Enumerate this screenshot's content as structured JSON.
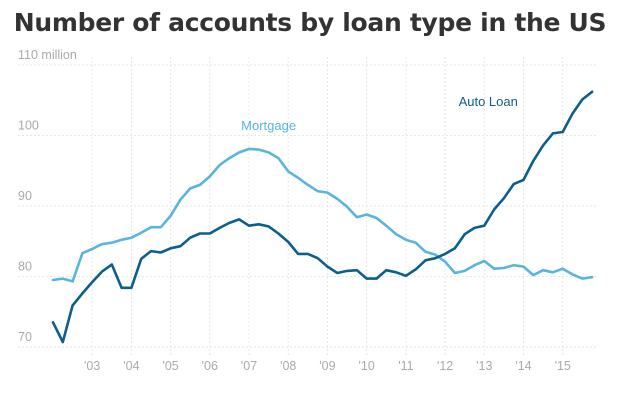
{
  "title": "Number of accounts by loan type in the US",
  "colors": {
    "mortgage": "#5ab4dc",
    "auto": "#0d5e8a",
    "grid": "#e6e6e6",
    "tick": "#aaaaaa"
  },
  "chart_data": {
    "type": "line",
    "title": "Number of accounts by loan type in the US",
    "xlabel": "",
    "ylabel": "",
    "xlim": [
      2002.0,
      2015.9
    ],
    "ylim": [
      70,
      110
    ],
    "y_ticks": [
      70,
      80,
      90,
      100,
      110
    ],
    "y_tick_labels": [
      "70",
      "80",
      "90",
      "100",
      "110 million"
    ],
    "x_ticks": [
      2003,
      2004,
      2005,
      2006,
      2007,
      2008,
      2009,
      2010,
      2011,
      2012,
      2013,
      2014,
      2015
    ],
    "x_tick_labels": [
      "'03",
      "'04",
      "'05",
      "'06",
      "'07",
      "'08",
      "'09",
      "'10",
      "'11",
      "'12",
      "'13",
      "'14",
      "'15"
    ],
    "grid": true,
    "series": [
      {
        "name": "Mortgage",
        "key": "mortgage",
        "x": [
          2002.0,
          2002.25,
          2002.5,
          2002.75,
          2003.0,
          2003.25,
          2003.5,
          2003.75,
          2004.0,
          2004.25,
          2004.5,
          2004.75,
          2005.0,
          2005.25,
          2005.5,
          2005.75,
          2006.0,
          2006.25,
          2006.5,
          2006.75,
          2007.0,
          2007.25,
          2007.5,
          2007.75,
          2008.0,
          2008.25,
          2008.5,
          2008.75,
          2009.0,
          2009.25,
          2009.5,
          2009.75,
          2010.0,
          2010.25,
          2010.5,
          2010.75,
          2011.0,
          2011.25,
          2011.5,
          2011.75,
          2012.0,
          2012.25,
          2012.5,
          2012.75,
          2013.0,
          2013.25,
          2013.5,
          2013.75,
          2014.0,
          2014.25,
          2014.5,
          2014.75,
          2015.0,
          2015.25,
          2015.5,
          2015.75
        ],
        "y": [
          79.5,
          79.7,
          79.3,
          83.3,
          83.9,
          84.6,
          84.8,
          85.2,
          85.5,
          86.2,
          87.0,
          87.0,
          88.6,
          90.9,
          92.5,
          93.0,
          94.2,
          95.8,
          96.8,
          97.6,
          98.1,
          98.0,
          97.6,
          96.8,
          94.9,
          94.0,
          93.0,
          92.1,
          91.9,
          91.0,
          89.9,
          88.4,
          88.8,
          88.3,
          87.2,
          86.0,
          85.2,
          84.8,
          83.5,
          83.1,
          82.1,
          80.5,
          80.8,
          81.6,
          82.2,
          81.1,
          81.2,
          81.6,
          81.4,
          80.2,
          80.9,
          80.6,
          81.1,
          80.3,
          79.7,
          79.9
        ]
      },
      {
        "name": "Auto Loan",
        "key": "auto",
        "x": [
          2002.0,
          2002.25,
          2002.5,
          2002.75,
          2003.0,
          2003.25,
          2003.5,
          2003.75,
          2004.0,
          2004.25,
          2004.5,
          2004.75,
          2005.0,
          2005.25,
          2005.5,
          2005.75,
          2006.0,
          2006.25,
          2006.5,
          2006.75,
          2007.0,
          2007.25,
          2007.5,
          2007.75,
          2008.0,
          2008.25,
          2008.5,
          2008.75,
          2009.0,
          2009.25,
          2009.5,
          2009.75,
          2010.0,
          2010.25,
          2010.5,
          2010.75,
          2011.0,
          2011.25,
          2011.5,
          2011.75,
          2012.0,
          2012.25,
          2012.5,
          2012.75,
          2013.0,
          2013.25,
          2013.5,
          2013.75,
          2014.0,
          2014.25,
          2014.5,
          2014.75,
          2015.0,
          2015.25,
          2015.5,
          2015.75
        ],
        "y": [
          73.5,
          70.7,
          75.9,
          77.6,
          79.2,
          80.7,
          81.7,
          78.4,
          78.4,
          82.5,
          83.6,
          83.4,
          84.0,
          84.3,
          85.5,
          86.1,
          86.1,
          86.9,
          87.6,
          88.1,
          87.2,
          87.4,
          87.1,
          86.1,
          84.9,
          83.2,
          83.2,
          82.6,
          81.4,
          80.5,
          80.8,
          80.9,
          79.7,
          79.7,
          80.9,
          80.6,
          80.1,
          81.0,
          82.3,
          82.6,
          83.2,
          84.0,
          86.0,
          86.9,
          87.2,
          89.5,
          91.1,
          93.1,
          93.7,
          96.4,
          98.6,
          100.3,
          100.5,
          103.1,
          105.1,
          106.2
        ]
      }
    ],
    "annotations": [
      {
        "series": "Mortgage",
        "text": "Mortgage",
        "x": 2007.5,
        "y": 100.8
      },
      {
        "series": "Auto Loan",
        "text": "Auto Loan",
        "x": 2013.1,
        "y": 104.2
      }
    ]
  }
}
